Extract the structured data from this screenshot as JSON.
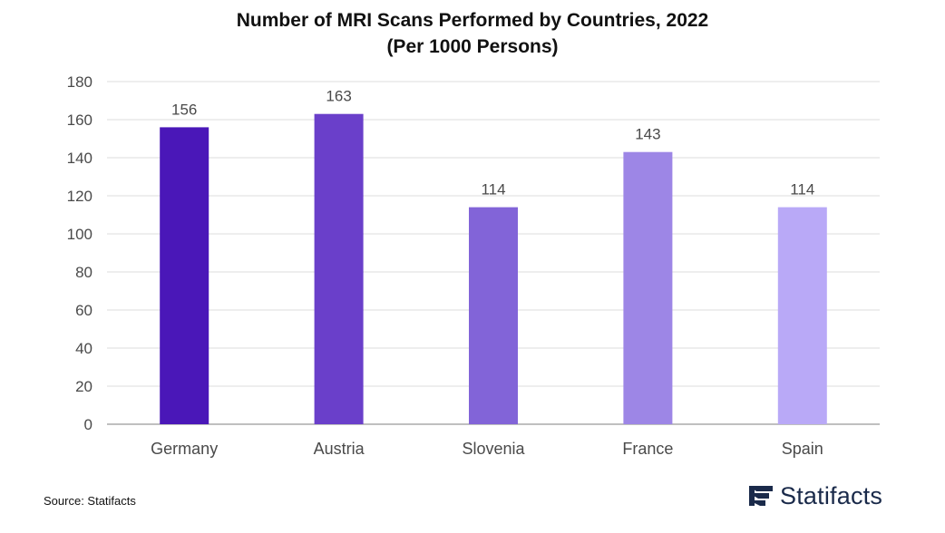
{
  "chart_data": {
    "type": "bar",
    "title_line1": "Number of MRI Scans Performed by Countries, 2022",
    "title_line2": "(Per 1000 Persons)",
    "categories": [
      "Germany",
      "Austria",
      "Slovenia",
      "France",
      "Spain"
    ],
    "values": [
      156,
      163,
      114,
      143,
      114
    ],
    "bar_colors": [
      "#4a17b8",
      "#6a3fca",
      "#8264d8",
      "#9d86e6",
      "#b9a9f7"
    ],
    "xlabel": "",
    "ylabel": "",
    "ylim": [
      0,
      180
    ],
    "yticks": [
      0,
      20,
      40,
      60,
      80,
      100,
      120,
      140,
      160,
      180
    ],
    "grid": true,
    "data_labels": true
  },
  "footer": {
    "source": "Source: Statifacts",
    "brand": "Statifacts"
  },
  "colors": {
    "grid": "#dddddd",
    "axis": "#999999",
    "text": "#4a4a4a",
    "brand": "#1a2a4a"
  }
}
